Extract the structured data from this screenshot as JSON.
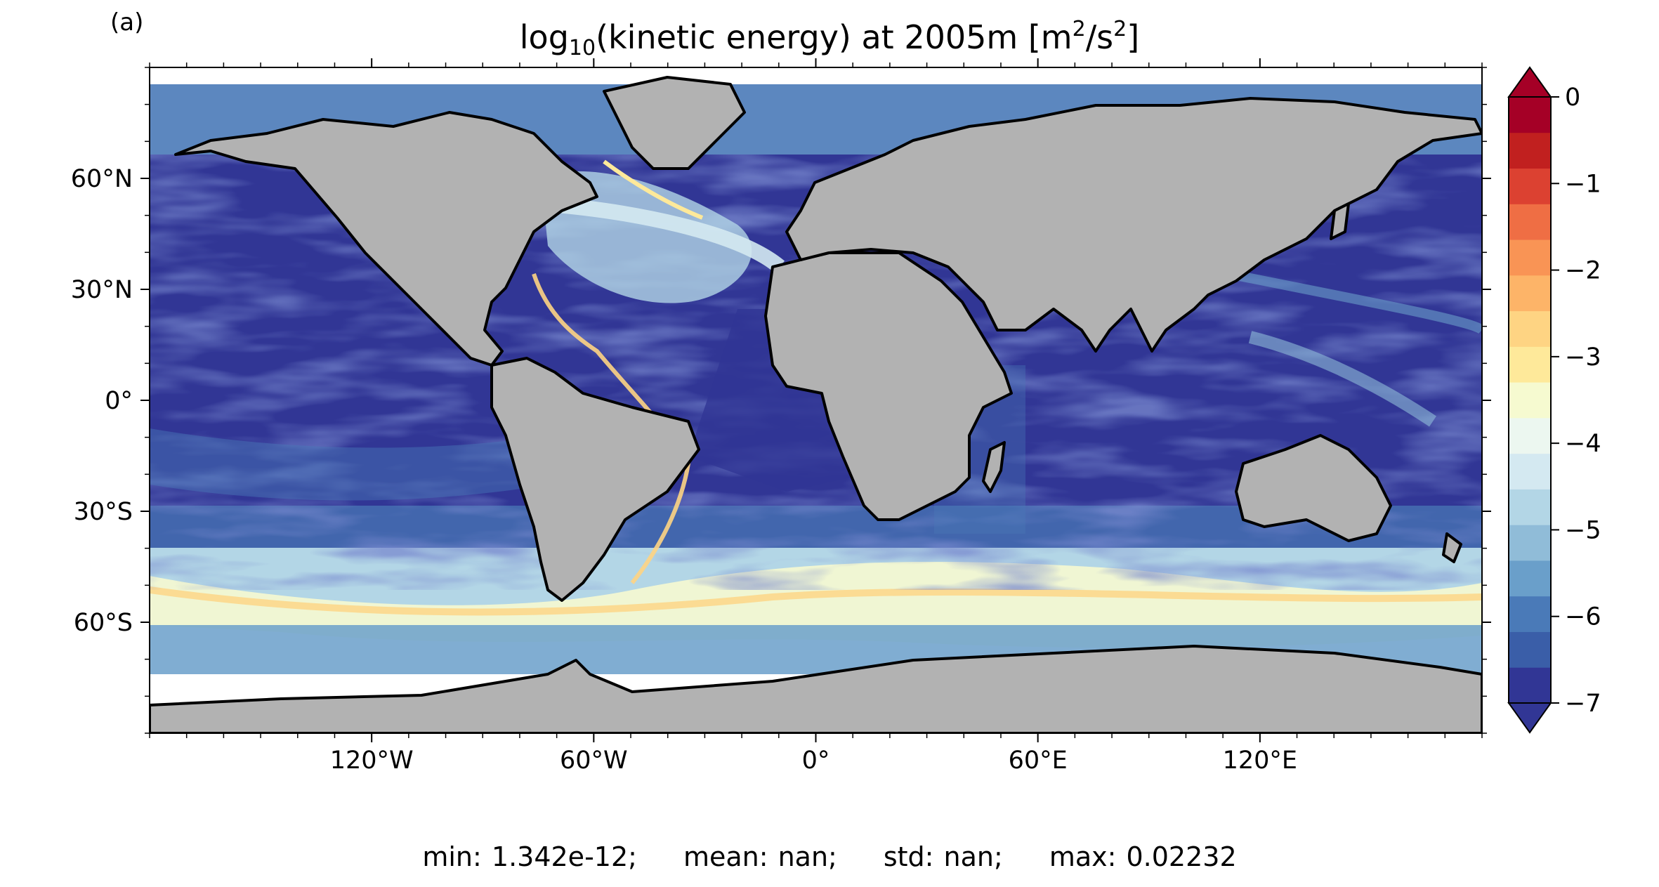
{
  "figure": {
    "panel_label": "(a)",
    "title": {
      "prefix": "log",
      "subscript": "10",
      "middle": "(kinetic energy) at 2005m [m",
      "sup1": "2",
      "mid2": "/s",
      "sup2": "2",
      "suffix": "]"
    }
  },
  "map": {
    "projection": "equirectangular",
    "extent": {
      "lon": [
        -180,
        180
      ],
      "lat": [
        -90,
        90
      ]
    },
    "land_color": "#b2b2b2",
    "coastline_color": "#000000",
    "no_data_color": "#ffffff",
    "lat_ticks": [
      "60°N",
      "30°N",
      "0°",
      "30°S",
      "60°S"
    ],
    "lon_ticks": [
      "120°W",
      "60°W",
      "0°",
      "60°E",
      "120°E"
    ],
    "lat_tick_values": [
      60,
      30,
      0,
      -30,
      -60
    ],
    "lon_tick_values": [
      -120,
      -60,
      0,
      60,
      120
    ]
  },
  "colorbar": {
    "colormap": "RdYlBu_r",
    "range": [
      -7,
      0
    ],
    "levels": 17,
    "extend": "both",
    "tick_labels": [
      "0",
      "−1",
      "−2",
      "−3",
      "−4",
      "−5",
      "−6",
      "−7"
    ],
    "tick_values": [
      0,
      -1,
      -2,
      -3,
      -4,
      -5,
      -6,
      -7
    ],
    "colors_low_to_high": [
      "#313695",
      "#3a5ea8",
      "#4a7ab8",
      "#6a9fca",
      "#90bcd8",
      "#b3d6e6",
      "#d4e9f1",
      "#ecf7f0",
      "#f6fad0",
      "#fee99a",
      "#fed483",
      "#fdb468",
      "#f99455",
      "#ef6e44",
      "#dc4131",
      "#c1201f",
      "#a50026"
    ]
  },
  "stats": {
    "min": "min: 1.342e-12;",
    "mean": "mean: nan;",
    "std": "std: nan;",
    "max": "max: 0.02232"
  }
}
